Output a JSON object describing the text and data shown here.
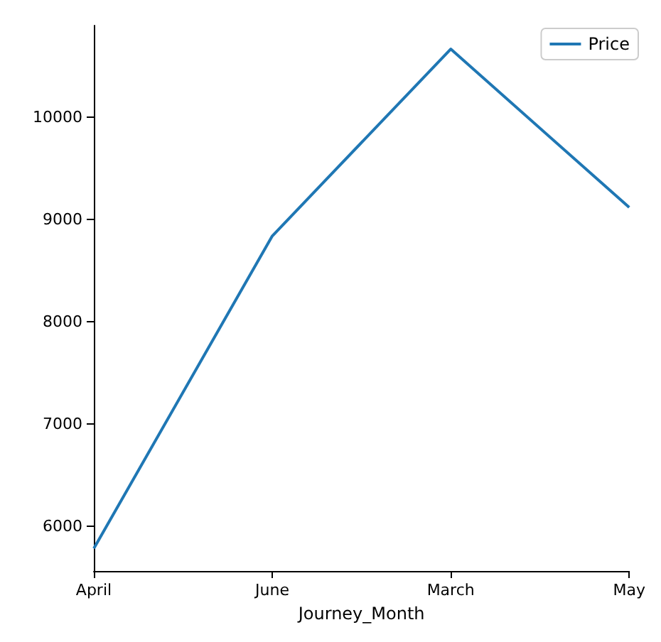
{
  "chart_data": {
    "type": "line",
    "xlabel": "Journey_Month",
    "categories": [
      "April",
      "June",
      "March",
      "May"
    ],
    "series": [
      {
        "name": "Price",
        "color": "#1f77b4",
        "values": [
          5780,
          8840,
          10670,
          9120
        ]
      }
    ],
    "ylim": [
      5560,
      10900
    ],
    "yticks": [
      6000,
      7000,
      8000,
      9000,
      10000
    ],
    "grid": false,
    "legend": "top right",
    "marker": "none",
    "line_style": "solid"
  }
}
